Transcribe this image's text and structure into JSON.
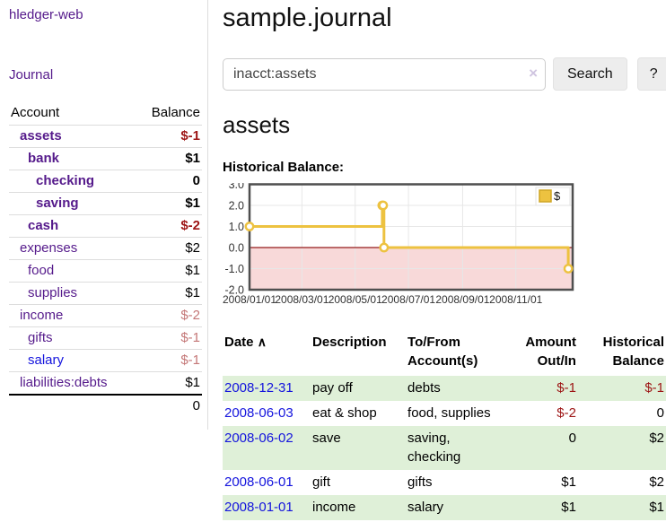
{
  "app": {
    "brand": "hledger-web",
    "nav_journal": "Journal"
  },
  "sidebar": {
    "col_account": "Account",
    "col_balance": "Balance",
    "accounts": [
      {
        "name": "assets",
        "balance": "$-1",
        "level": 0,
        "bold": true,
        "neg": "strong"
      },
      {
        "name": "bank",
        "balance": "$1",
        "level": 1,
        "bold": true,
        "neg": "none"
      },
      {
        "name": "checking",
        "balance": "0",
        "level": 2,
        "bold": true,
        "neg": "none"
      },
      {
        "name": "saving",
        "balance": "$1",
        "level": 2,
        "bold": true,
        "neg": "none"
      },
      {
        "name": "cash",
        "balance": "$-2",
        "level": 1,
        "bold": true,
        "neg": "strong"
      },
      {
        "name": "expenses",
        "balance": "$2",
        "level": 0,
        "bold": false,
        "neg": "none"
      },
      {
        "name": "food",
        "balance": "$1",
        "level": 1,
        "bold": false,
        "neg": "none"
      },
      {
        "name": "supplies",
        "balance": "$1",
        "level": 1,
        "bold": false,
        "neg": "none"
      },
      {
        "name": "income",
        "balance": "$-2",
        "level": 0,
        "bold": false,
        "neg": "soft"
      },
      {
        "name": "gifts",
        "balance": "$-1",
        "level": 1,
        "bold": false,
        "neg": "soft"
      },
      {
        "name": "salary",
        "balance": "$-1",
        "level": 1,
        "bold": false,
        "neg": "soft",
        "blue": true
      },
      {
        "name": "liabilities:debts",
        "balance": "$1",
        "level": 0,
        "bold": false,
        "neg": "none"
      }
    ],
    "total": "0"
  },
  "header": {
    "title": "sample.journal"
  },
  "search": {
    "value": "inacct:assets",
    "clear_icon": "×",
    "button_label": "Search",
    "help_label": "?"
  },
  "account_page": {
    "title": "assets",
    "chart_label": "Historical Balance:"
  },
  "chart_data": {
    "type": "line",
    "step": true,
    "title": "Historical Balance",
    "series": [
      {
        "name": "$",
        "color": "#EDC240",
        "points": [
          [
            "2008-01-01",
            1
          ],
          [
            "2008-06-01",
            2
          ],
          [
            "2008-06-02",
            2
          ],
          [
            "2008-06-03",
            0
          ],
          [
            "2008-12-31",
            -1
          ]
        ]
      }
    ],
    "ylim": [
      -2,
      3
    ],
    "yticks": [
      3.0,
      2.0,
      1.0,
      0.0,
      -1.0,
      -2.0
    ],
    "xticks": [
      "2008/01/01",
      "2008/03/01",
      "2008/05/01",
      "2008/07/01",
      "2008/09/01",
      "2008/11/01"
    ],
    "xrange": [
      "2008-01-01",
      "2009-01-05"
    ],
    "grid": true,
    "legend_position": "top-right",
    "colors": {
      "line": "#EDC240",
      "marker_fill": "#ffffff",
      "negative_region_fill": "#f8d9d9",
      "zero_line": "#941a1a",
      "border": "#4f4f4f",
      "gridline": "#e7e7e7",
      "tick_text": "#333333"
    }
  },
  "register": {
    "sort_arrow": "∧",
    "headers": {
      "date": "Date",
      "description": "Description",
      "accounts": "To/From Account(s)",
      "amount": "Amount Out/In",
      "balance": "Historical Balance"
    },
    "rows": [
      {
        "date": "2008-12-31",
        "description": "pay off",
        "accounts": "debts",
        "amount": "$-1",
        "amount_neg": true,
        "balance": "$-1",
        "balance_neg": true,
        "shaded": true
      },
      {
        "date": "2008-06-03",
        "description": "eat & shop",
        "accounts": "food, supplies",
        "amount": "$-2",
        "amount_neg": true,
        "balance": "0",
        "balance_neg": false,
        "shaded": false
      },
      {
        "date": "2008-06-02",
        "description": "save",
        "accounts": "saving, checking",
        "amount": "0",
        "amount_neg": false,
        "balance": "$2",
        "balance_neg": false,
        "shaded": true
      },
      {
        "date": "2008-06-01",
        "description": "gift",
        "accounts": "gifts",
        "amount": "$1",
        "amount_neg": false,
        "balance": "$2",
        "balance_neg": false,
        "shaded": false
      },
      {
        "date": "2008-01-01",
        "description": "income",
        "accounts": "salary",
        "amount": "$1",
        "amount_neg": false,
        "balance": "$1",
        "balance_neg": false,
        "shaded": true
      }
    ]
  }
}
